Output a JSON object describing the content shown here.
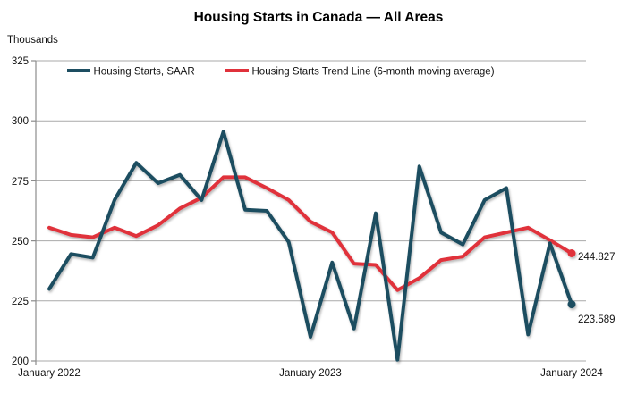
{
  "chart_data": {
    "type": "line",
    "title": "Housing Starts in Canada — All Areas",
    "unit_label": "Thousands",
    "xlabel": "",
    "ylabel": "Thousands",
    "ylim": [
      200,
      325
    ],
    "yticks": [
      "325",
      "300",
      "275",
      "250",
      "225",
      "200"
    ],
    "xticks": [
      "January 2022",
      "January 2023",
      "January 2024"
    ],
    "grid": true,
    "legend_position": "top-inside",
    "months": [
      "Jan 2022",
      "Feb 2022",
      "Mar 2022",
      "Apr 2022",
      "May 2022",
      "Jun 2022",
      "Jul 2022",
      "Aug 2022",
      "Sep 2022",
      "Oct 2022",
      "Nov 2022",
      "Dec 2022",
      "Jan 2023",
      "Feb 2023",
      "Mar 2023",
      "Apr 2023",
      "May 2023",
      "Jun 2023",
      "Jul 2023",
      "Aug 2023",
      "Sep 2023",
      "Oct 2023",
      "Nov 2023",
      "Dec 2023",
      "Jan 2024"
    ],
    "series": [
      {
        "name": "Housing Starts, SAAR",
        "color": "#1d4e61",
        "values": [
          230,
          244.5,
          243,
          267,
          282.5,
          274,
          277.5,
          267,
          295.5,
          263,
          262.5,
          249.5,
          210,
          241,
          213.5,
          261.5,
          200.5,
          281,
          253.5,
          248.5,
          267,
          272,
          211,
          249,
          223.589
        ]
      },
      {
        "name": "Housing Starts Trend Line (6-month moving average)",
        "color": "#e0313b",
        "values": [
          255.5,
          252.5,
          251.5,
          255.5,
          252,
          256.5,
          263.5,
          268,
          276.5,
          276.5,
          272,
          267,
          258,
          253.5,
          240.5,
          240,
          229.5,
          234.5,
          242,
          243.5,
          251.5,
          253.5,
          255.5,
          250.3,
          244.827
        ]
      }
    ],
    "end_labels": {
      "trend_value": "244.827",
      "saar_value": "223.589"
    },
    "colors": {
      "gridline": "#a9a9a9",
      "axis": "#8c8c8c",
      "text": "#111111"
    }
  }
}
